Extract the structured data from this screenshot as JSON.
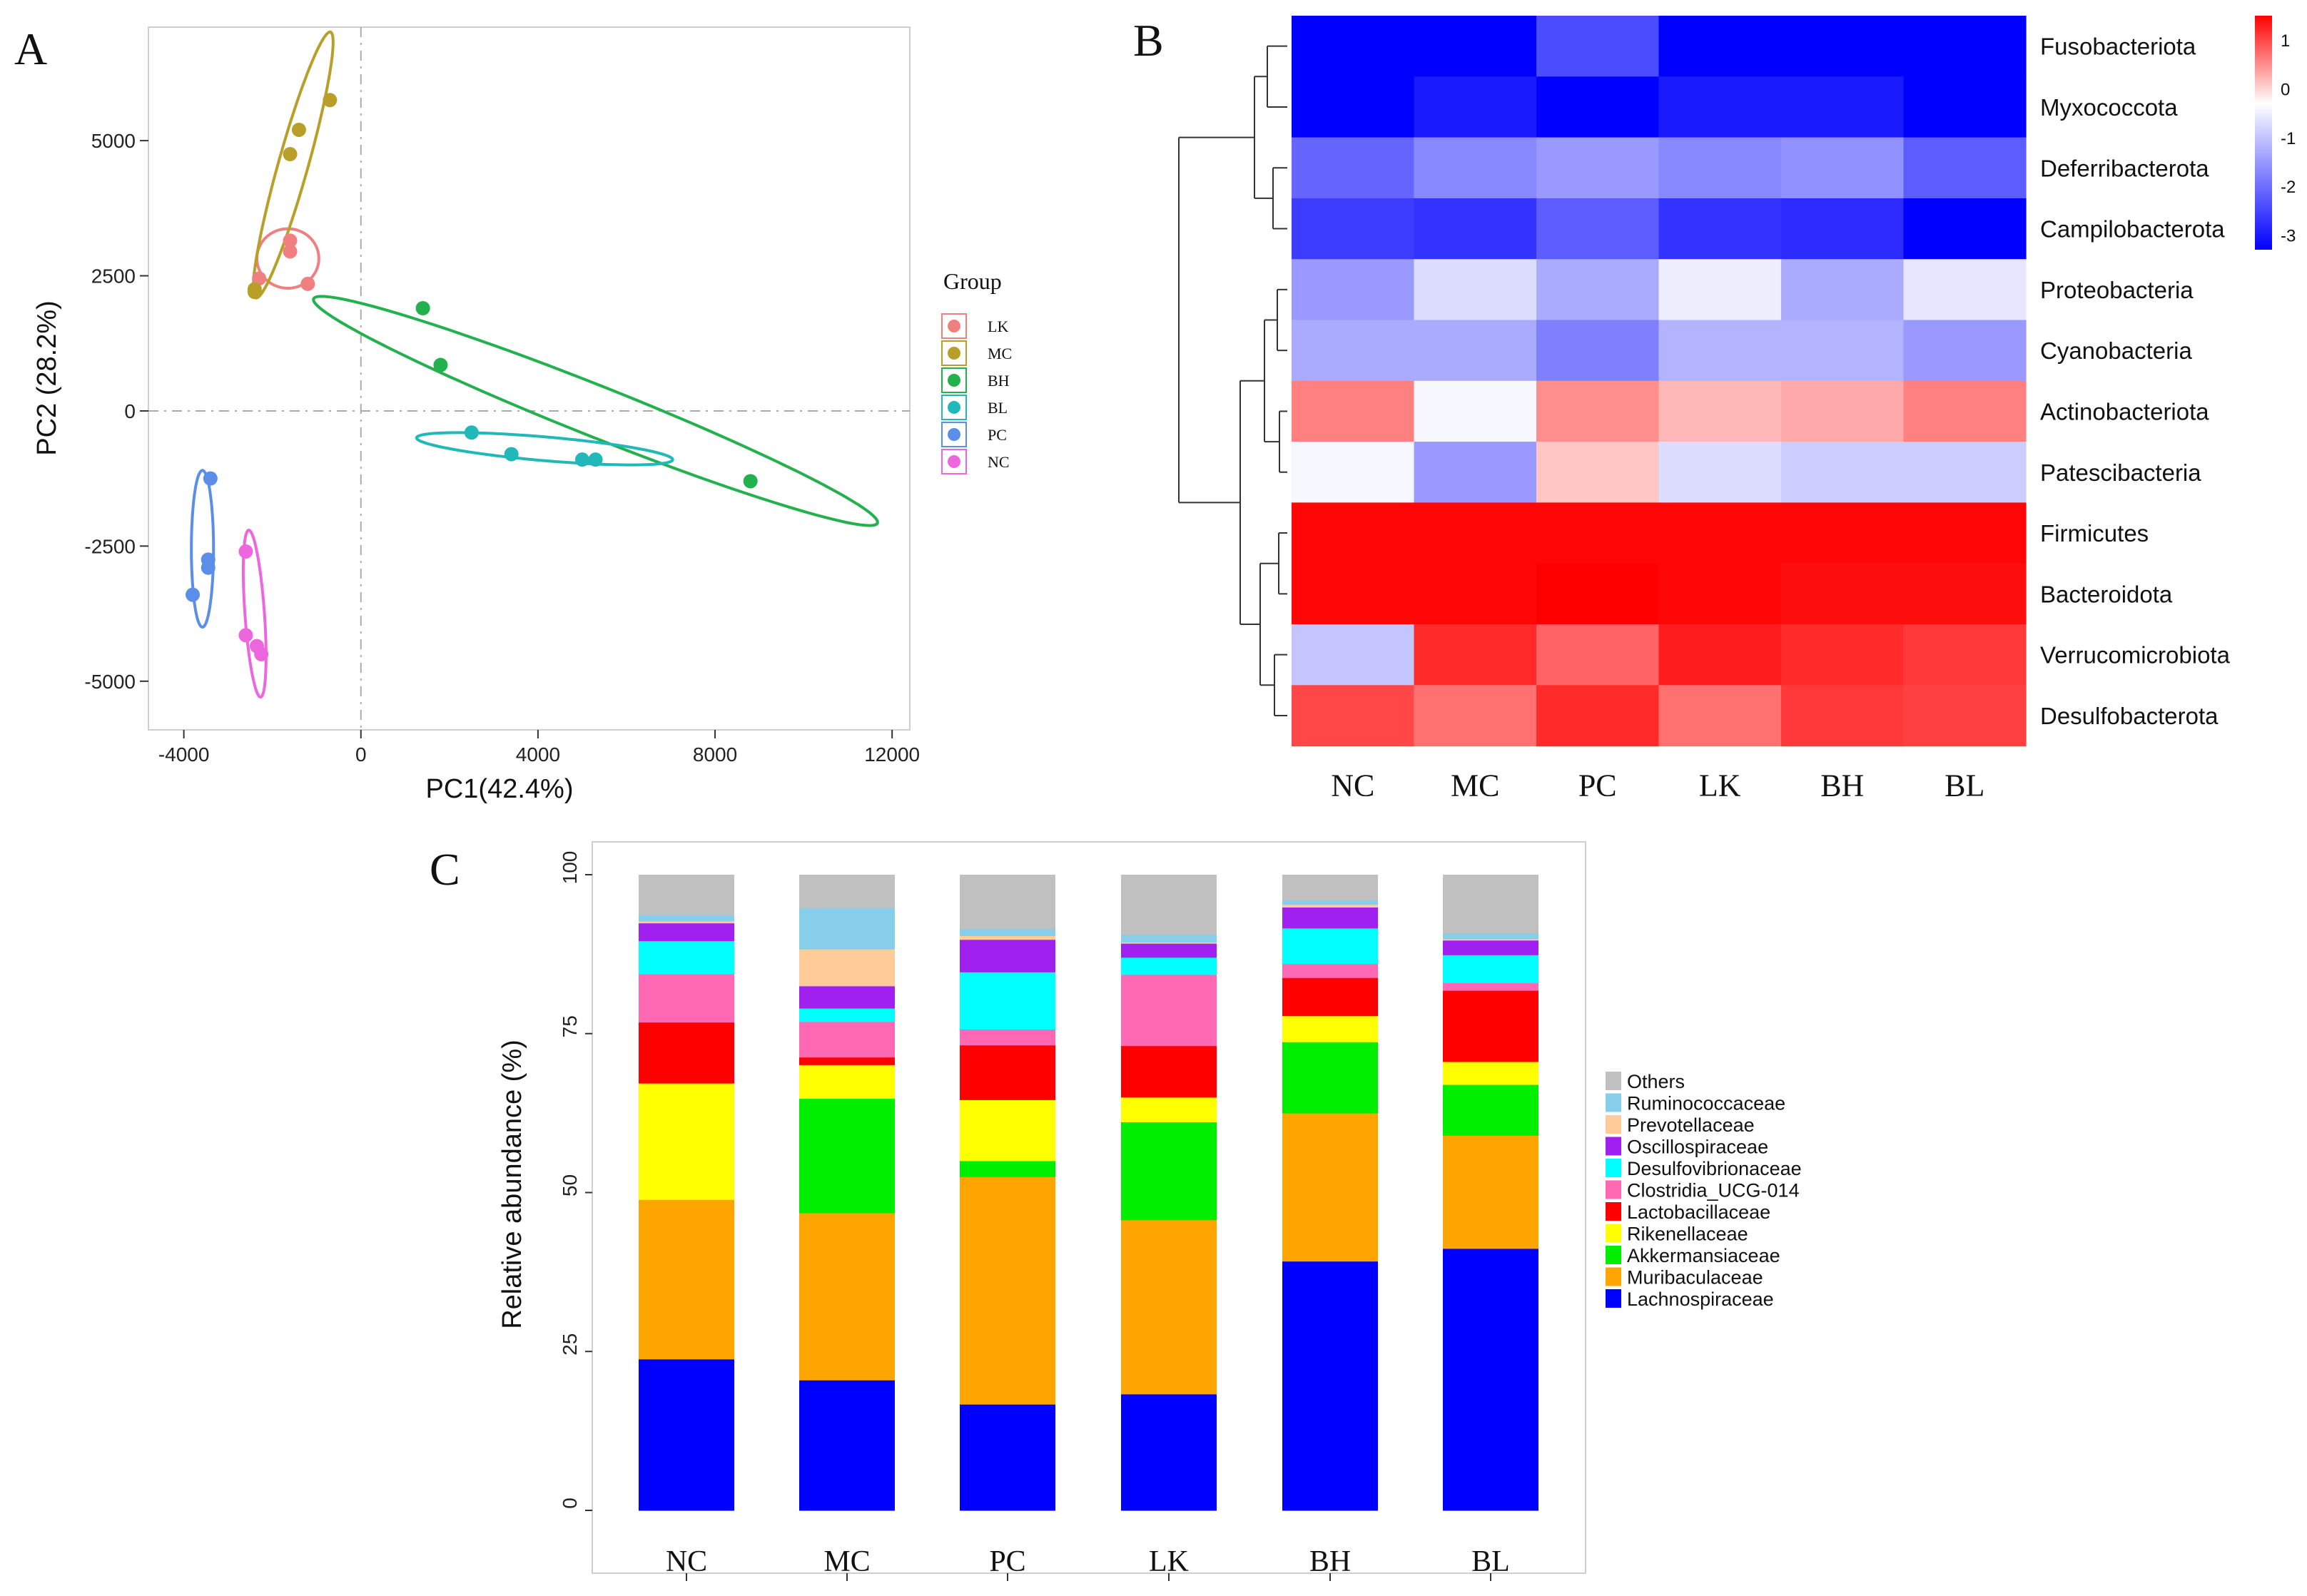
{
  "panels": {
    "a": "A",
    "b": "B",
    "c": "C"
  },
  "chart_data": [
    {
      "type": "scatter",
      "title": "",
      "xlabel": "PC1(42.4%)",
      "ylabel": "PC2 (28.2%)",
      "xlim": [
        -4800,
        12400
      ],
      "ylim": [
        -5900,
        7100
      ],
      "x_ticks": [
        -4000,
        0,
        4000,
        8000,
        12000
      ],
      "x_tick_labels": [
        "-4000",
        "0",
        "4000",
        "8000",
        "12000"
      ],
      "y_ticks": [
        -5000,
        -2500,
        0,
        2500,
        5000
      ],
      "y_tick_labels": [
        "-5000",
        "-2500",
        "0",
        "2500",
        "5000"
      ],
      "legend_title": "Group",
      "legend_position": "right",
      "series": [
        {
          "name": "LK",
          "color": "#f08080",
          "points": [
            [
              -1600,
              2950
            ],
            [
              -1600,
              3150
            ],
            [
              -2300,
              2450
            ],
            [
              -1200,
              2350
            ]
          ],
          "ellipse": {
            "cx": -1650,
            "cy": 2820,
            "rx": 700,
            "ry": 550,
            "angle": 0
          }
        },
        {
          "name": "MC",
          "color": "#b8a028",
          "points": [
            [
              -700,
              5750
            ],
            [
              -1400,
              5200
            ],
            [
              -1600,
              4750
            ],
            [
              -2400,
              2200
            ],
            [
              -2400,
              2250
            ]
          ],
          "ellipse": {
            "cx": -1530,
            "cy": 4550,
            "rx": 2600,
            "ry": 330,
            "angle": 71
          }
        },
        {
          "name": "BH",
          "color": "#22b14c",
          "points": [
            [
              1400,
              1900
            ],
            [
              1800,
              850
            ],
            [
              8800,
              -1300
            ]
          ],
          "ellipse": {
            "cx": 5300,
            "cy": 0,
            "rx": 6700,
            "ry": 480,
            "angle": -18
          }
        },
        {
          "name": "BL",
          "color": "#20b8b8",
          "points": [
            [
              2500,
              -400
            ],
            [
              3400,
              -800
            ],
            [
              5000,
              -900
            ],
            [
              5300,
              -900
            ]
          ],
          "ellipse": {
            "cx": 4150,
            "cy": -700,
            "rx": 2900,
            "ry": 220,
            "angle": -4
          }
        },
        {
          "name": "PC",
          "color": "#5a8ee8",
          "points": [
            [
              -3400,
              -1250
            ],
            [
              -3450,
              -2750
            ],
            [
              -3450,
              -2900
            ],
            [
              -3800,
              -3400
            ]
          ],
          "ellipse": {
            "cx": -3580,
            "cy": -2550,
            "rx": 1450,
            "ry": 250,
            "angle": 90
          }
        },
        {
          "name": "NC",
          "color": "#ee66dd",
          "points": [
            [
              -2600,
              -2600
            ],
            [
              -2600,
              -4150
            ],
            [
              -2350,
              -4350
            ],
            [
              -2250,
              -4500
            ]
          ],
          "ellipse": {
            "cx": -2400,
            "cy": -3750,
            "rx": 1550,
            "ry": 220,
            "angle": 95
          }
        }
      ]
    },
    {
      "type": "heatmap",
      "title": "",
      "columns": [
        "NC",
        "MC",
        "PC",
        "LK",
        "BH",
        "BL"
      ],
      "rows": [
        "Fusobacteriota",
        "Myxococcota",
        "Deferribacterota",
        "Campilobacterota",
        "Proteobacteria",
        "Cyanobacteria",
        "Actinobacteriota",
        "Patescibacteria",
        "Firmicutes",
        "Bacteroidota",
        "Verrucomicrobiota",
        "Desulfobacterota"
      ],
      "values": [
        [
          -3.3,
          -3.3,
          -2.4,
          -3.3,
          -3.3,
          -3.3
        ],
        [
          -3.3,
          -3.0,
          -3.3,
          -3.0,
          -3.0,
          -3.3
        ],
        [
          -2.1,
          -1.7,
          -1.5,
          -1.7,
          -1.6,
          -2.2
        ],
        [
          -2.6,
          -2.7,
          -2.2,
          -2.7,
          -2.8,
          -3.3
        ],
        [
          -1.5,
          -0.7,
          -1.3,
          -0.5,
          -1.3,
          -0.6
        ],
        [
          -1.3,
          -1.3,
          -1.8,
          -1.2,
          -1.2,
          -1.5
        ],
        [
          0.6,
          -0.4,
          0.5,
          0.2,
          0.3,
          0.6
        ],
        [
          -0.4,
          -1.5,
          0.1,
          -0.7,
          -0.9,
          -0.9
        ],
        [
          1.45,
          1.45,
          1.45,
          1.45,
          1.45,
          1.45
        ],
        [
          1.45,
          1.45,
          1.5,
          1.45,
          1.4,
          1.4
        ],
        [
          -1.0,
          1.2,
          0.8,
          1.3,
          1.2,
          1.1
        ],
        [
          1.0,
          0.7,
          1.2,
          0.7,
          1.1,
          1.05
        ]
      ],
      "colorbar": {
        "ticks": [
          1,
          0,
          -1,
          -2,
          -3
        ],
        "tick_labels": [
          "1",
          "0",
          "-1",
          "-2",
          "-3"
        ],
        "range": [
          -3.3,
          1.5
        ],
        "low_color": "#0000ff",
        "mid_color": "#ffffff",
        "high_color": "#ff0000"
      },
      "row_dendrogram": true
    },
    {
      "type": "bar",
      "stacked": true,
      "title": "",
      "xlabel": "",
      "ylabel": "Relative abundance (%)",
      "ylim": [
        0,
        100
      ],
      "y_ticks": [
        0,
        25,
        50,
        75,
        100
      ],
      "y_tick_labels": [
        "0",
        "25",
        "50",
        "75",
        "100"
      ],
      "categories": [
        "NC",
        "MC",
        "PC",
        "LK",
        "BH",
        "BL"
      ],
      "legend_position": "right",
      "legend_order": [
        "Others",
        "Ruminococcaceae",
        "Prevotellaceae",
        "Oscillospiraceae",
        "Desulfovibrionaceae",
        "Clostridia_UCG-014",
        "Lactobacillaceae",
        "Rikenellaceae",
        "Akkermansiaceae",
        "Muribaculaceae",
        "Lachnospiraceae"
      ],
      "series": [
        {
          "name": "Lachnospiraceae",
          "color": "#0000ff",
          "values": [
            23.8,
            20.5,
            16.7,
            18.3,
            39.2,
            41.2
          ]
        },
        {
          "name": "Muribaculaceae",
          "color": "#ffa500",
          "values": [
            25.1,
            26.3,
            35.8,
            27.4,
            23.3,
            17.8
          ]
        },
        {
          "name": "Akkermansiaceae",
          "color": "#00ee00",
          "values": [
            0.0,
            18.0,
            2.5,
            15.4,
            11.2,
            8.0
          ]
        },
        {
          "name": "Rikenellaceae",
          "color": "#ffff00",
          "values": [
            18.3,
            5.3,
            9.6,
            3.9,
            4.1,
            3.6
          ]
        },
        {
          "name": "Lactobacillaceae",
          "color": "#ff0000",
          "values": [
            9.6,
            1.2,
            8.6,
            8.1,
            6.0,
            11.2
          ]
        },
        {
          "name": "Clostridia_UCG-014",
          "color": "#ff69b4",
          "values": [
            7.6,
            5.6,
            2.5,
            11.2,
            2.2,
            1.2
          ]
        },
        {
          "name": "Desulfovibrionaceae",
          "color": "#00ffff",
          "values": [
            5.2,
            2.1,
            9.0,
            2.7,
            5.6,
            4.4
          ]
        },
        {
          "name": "Oscillospiraceae",
          "color": "#a020f0",
          "values": [
            2.8,
            3.5,
            5.1,
            2.2,
            3.3,
            2.3
          ]
        },
        {
          "name": "Prevotellaceae",
          "color": "#ffcc99",
          "values": [
            0.3,
            5.8,
            0.6,
            0.2,
            0.4,
            0.2
          ]
        },
        {
          "name": "Ruminococcaceae",
          "color": "#87ceeb",
          "values": [
            1.0,
            6.5,
            1.1,
            1.2,
            0.7,
            0.9
          ]
        },
        {
          "name": "Others",
          "color": "#c0c0c0",
          "values": [
            6.3,
            5.2,
            8.5,
            9.4,
            4.0,
            9.2
          ]
        }
      ]
    }
  ]
}
